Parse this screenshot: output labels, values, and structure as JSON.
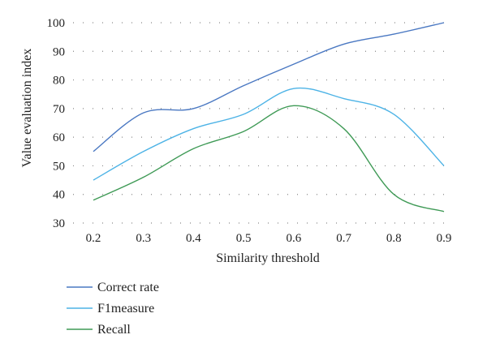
{
  "chart_data": {
    "type": "line",
    "x": [
      0.2,
      0.3,
      0.4,
      0.5,
      0.6,
      0.7,
      0.8,
      0.9
    ],
    "xticks": [
      "0.2",
      "0.3",
      "0.4",
      "0.5",
      "0.6",
      "0.7",
      "0.8",
      "0.9"
    ],
    "yticks": [
      "30",
      "40",
      "50",
      "60",
      "70",
      "80",
      "90",
      "100"
    ],
    "xlabel": "Similarity threshold",
    "ylabel": "Value evaluation index",
    "xlim": [
      0.2,
      0.9
    ],
    "ylim": [
      30,
      100
    ],
    "grid": "horizontal dotted",
    "legend_position": "bottom-left",
    "series": [
      {
        "name": "Correct rate",
        "color": "#4a78c2",
        "values": [
          55,
          68.5,
          70,
          78,
          85.5,
          92.5,
          96,
          100
        ]
      },
      {
        "name": "F1measure",
        "color": "#4db3e6",
        "values": [
          45,
          55,
          63,
          68,
          77,
          73.5,
          68,
          50
        ]
      },
      {
        "name": "Recall",
        "color": "#3f9a56",
        "values": [
          38,
          46,
          56,
          62,
          71,
          63,
          40,
          34
        ]
      }
    ]
  }
}
